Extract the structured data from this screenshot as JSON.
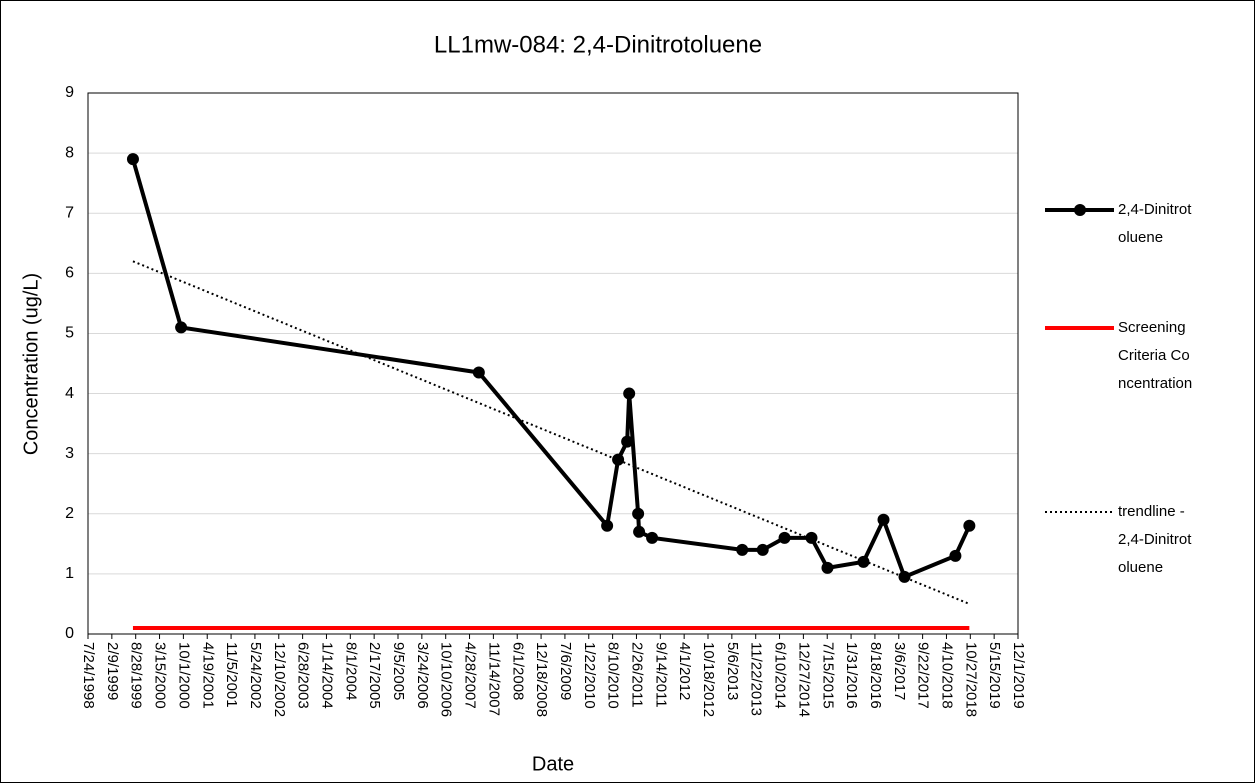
{
  "chart_data": {
    "type": "line",
    "title": "LL1mw-084: 2,4-Dinitrotoluene",
    "xlabel": "Date",
    "ylabel": "Concentration (ug/L)",
    "xlim": [
      "7/24/1998",
      "12/1/2019"
    ],
    "xticks": [
      "7/24/1998",
      "2/9/1999",
      "8/28/1999",
      "3/15/2000",
      "10/1/2000",
      "4/19/2001",
      "11/5/2001",
      "5/24/2002",
      "12/10/2002",
      "6/28/2003",
      "1/14/2004",
      "8/1/2004",
      "2/17/2005",
      "9/5/2005",
      "3/24/2006",
      "10/10/2006",
      "4/28/2007",
      "11/14/2007",
      "6/1/2008",
      "12/18/2008",
      "7/6/2009",
      "1/22/2010",
      "8/10/2010",
      "2/26/2011",
      "9/14/2011",
      "4/1/2012",
      "10/18/2012",
      "5/6/2013",
      "11/22/2013",
      "6/10/2014",
      "12/27/2014",
      "7/15/2015",
      "1/31/2016",
      "8/18/2016",
      "3/6/2017",
      "9/22/2017",
      "4/10/2018",
      "10/27/2018",
      "5/15/2019",
      "12/1/2019"
    ],
    "ylim": [
      0,
      9
    ],
    "yticks": [
      0,
      1,
      2,
      3,
      4,
      5,
      6,
      7,
      8,
      9
    ],
    "grid": true,
    "legend": "right",
    "series": [
      {
        "name": "2,4-Dinitrotoluene",
        "color": "#000000",
        "x": [
          "8/5/1999",
          "9/12/2000",
          "7/15/2007",
          "6/25/2010",
          "9/25/2010",
          "12/10/2010",
          "12/27/2010",
          "3/12/2011",
          "3/20/2011",
          "7/7/2011",
          "8/1/2013",
          "1/20/2014",
          "7/22/2014",
          "3/5/2015",
          "7/17/2015",
          "5/14/2016",
          "10/29/2016",
          "4/23/2017",
          "6/24/2018",
          "10/19/2018"
        ],
        "values": [
          7.9,
          5.1,
          4.35,
          1.8,
          2.9,
          3.2,
          4.0,
          2.0,
          1.7,
          1.6,
          1.4,
          1.4,
          1.6,
          1.6,
          1.1,
          1.2,
          1.9,
          0.95,
          1.3,
          1.8
        ]
      },
      {
        "name": "Screening Criteria Concentration",
        "color": "#ff0000",
        "x": [
          "8/5/1999",
          "10/19/2018"
        ],
        "values": [
          0.1,
          0.1
        ]
      },
      {
        "name": "trendline - 2,4-Dinitrotoluene",
        "color": "#000000",
        "x": [
          "8/5/1999",
          "10/19/2018"
        ],
        "values": [
          6.2,
          0.5
        ]
      }
    ]
  }
}
